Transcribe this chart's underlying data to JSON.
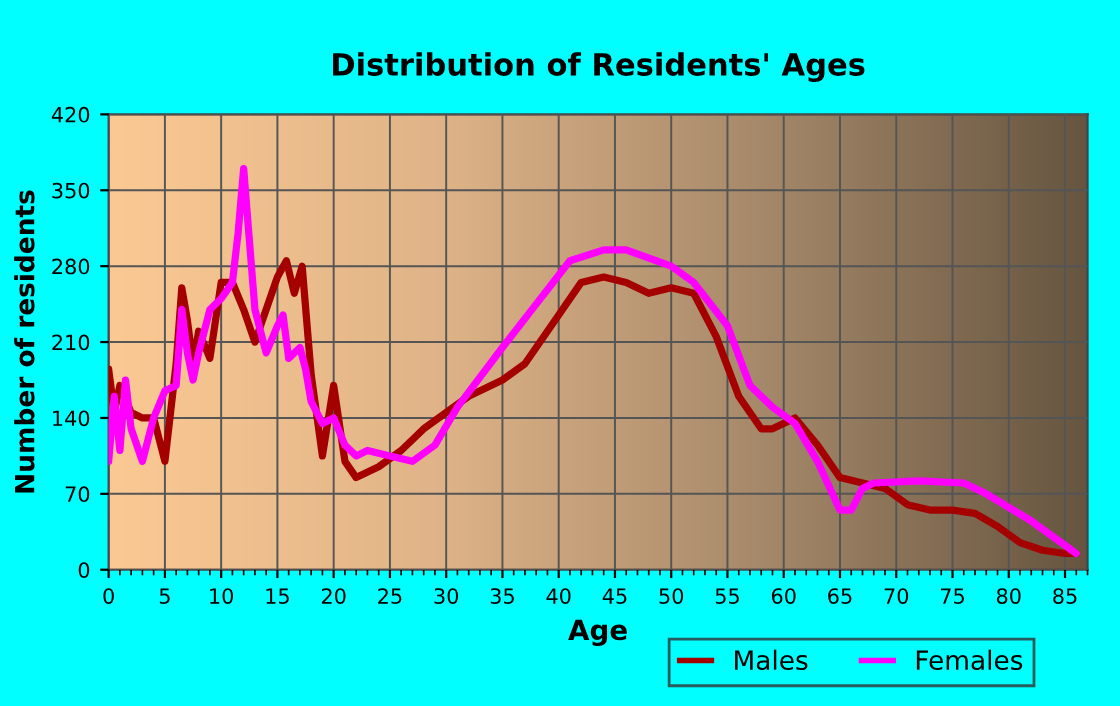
{
  "chart_data": {
    "type": "line",
    "title": "Distribution of Residents' Ages",
    "xlabel": "Age",
    "ylabel": "Number of residents",
    "xlim": [
      0,
      87
    ],
    "xticks": [
      0,
      5,
      10,
      15,
      20,
      25,
      30,
      35,
      40,
      45,
      50,
      55,
      60,
      65,
      70,
      75,
      80,
      85
    ],
    "ylim": [
      0,
      420
    ],
    "yticks": [
      0,
      70,
      140,
      210,
      280,
      350,
      420
    ],
    "grid": true,
    "legend": "bottom right",
    "marker": "none",
    "line_style": "solid",
    "series": [
      {
        "name": "Males",
        "color": "#a50000",
        "x": [
          0,
          0.5,
          1,
          2,
          3,
          4,
          5,
          6,
          6.5,
          7,
          7.5,
          8,
          9,
          10,
          11,
          12,
          13,
          14,
          15,
          15.8,
          16.5,
          17.2,
          18,
          19,
          20,
          21,
          22,
          24,
          26,
          28,
          30,
          32,
          35,
          37,
          40,
          42,
          44,
          46,
          48,
          50,
          52,
          54,
          56,
          58,
          59,
          61,
          63,
          65,
          67,
          69,
          71,
          73,
          75,
          77,
          79,
          81,
          83,
          85,
          86
        ],
        "values": [
          185,
          145,
          170,
          145,
          140,
          140,
          100,
          190,
          260,
          230,
          190,
          220,
          195,
          265,
          265,
          240,
          210,
          240,
          270,
          285,
          255,
          280,
          180,
          105,
          170,
          100,
          85,
          95,
          110,
          130,
          145,
          160,
          175,
          190,
          235,
          265,
          270,
          265,
          255,
          260,
          255,
          215,
          160,
          130,
          130,
          140,
          115,
          85,
          80,
          75,
          60,
          55,
          55,
          52,
          40,
          25,
          18,
          15,
          15
        ]
      },
      {
        "name": "Females",
        "color": "#ff00ff",
        "x": [
          0,
          0.5,
          1,
          1.5,
          2,
          3,
          4,
          5,
          6,
          6.5,
          7,
          7.5,
          8,
          9,
          10,
          11,
          11.5,
          12,
          13,
          14,
          15,
          15.5,
          16,
          17,
          17.5,
          18,
          19,
          20,
          21,
          22,
          23,
          25,
          27,
          29,
          31,
          35,
          38,
          41,
          44,
          46,
          50,
          52,
          55,
          57,
          59,
          61,
          63,
          65,
          66,
          67,
          68,
          72,
          76,
          78,
          82,
          86
        ],
        "values": [
          100,
          160,
          110,
          175,
          130,
          100,
          140,
          165,
          170,
          240,
          200,
          175,
          200,
          240,
          250,
          265,
          310,
          370,
          240,
          200,
          225,
          235,
          195,
          205,
          185,
          155,
          135,
          140,
          115,
          105,
          110,
          105,
          100,
          115,
          150,
          205,
          245,
          285,
          295,
          295,
          280,
          265,
          225,
          170,
          150,
          135,
          100,
          55,
          55,
          75,
          80,
          82,
          80,
          70,
          45,
          15
        ]
      }
    ]
  }
}
